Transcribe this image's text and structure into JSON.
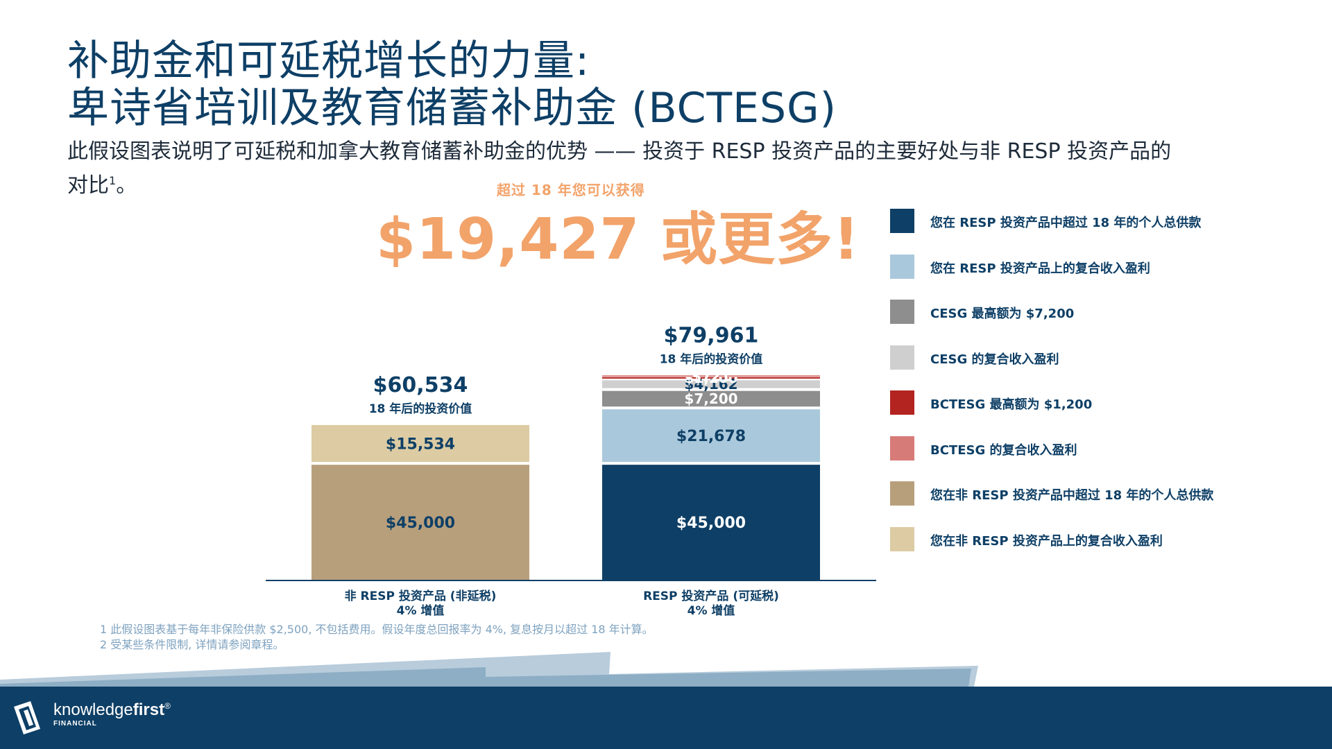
{
  "title_line1": "补助金和可延税增长的力量:",
  "title_line2": "卑诗省培训及教育储蓄补助金 (BCTESG)",
  "subtitle_text": "此假设图表说明了可延税和加拿大教育储蓄补助金的优势 —— 投资于 RESP 投资产品的主要好处与非 RESP 投资产品的对比",
  "subtitle_sup": "1",
  "subtitle_end": "。",
  "highlight": {
    "caption": "超过 18 年您可以获得",
    "amount": "$19,427 或更多!"
  },
  "chart_data": {
    "type": "bar",
    "stacked": true,
    "categories": [
      "非 RESP 投资产品 (非延税)",
      "RESP 投资产品 (可延税)"
    ],
    "category_sub": [
      "4% 增值",
      "4% 增值"
    ],
    "totals": [
      60534,
      79961
    ],
    "total_labels": [
      "$60,534",
      "$79,961"
    ],
    "total_sublabel": "18 年后的投资价值",
    "series": [
      {
        "name": "您在非 RESP 投资产品中超过 18 年的个人总供款",
        "color": "#b89f7c",
        "text_color": "#0e3f66",
        "values": [
          45000,
          0
        ],
        "labels": [
          "$45,000",
          ""
        ]
      },
      {
        "name": "您在非 RESP 投资产品上的复合收入盈利",
        "color": "#dccba3",
        "text_color": "#0e3f66",
        "values": [
          15534,
          0
        ],
        "labels": [
          "$15,534",
          ""
        ]
      },
      {
        "name": "您在 RESP 投资产品中超过 18 年的个人总供款",
        "color": "#0e3f66",
        "text_color": "#ffffff",
        "values": [
          0,
          45000
        ],
        "labels": [
          "",
          "$45,000"
        ]
      },
      {
        "name": "您在 RESP 投资产品上的复合收入盈利",
        "color": "#a9c8db",
        "text_color": "#0e3f66",
        "values": [
          0,
          21678
        ],
        "labels": [
          "",
          "$21,678"
        ]
      },
      {
        "name": "CESG 最高额为 $7,200",
        "color": "#8e8e8e",
        "text_color": "#ffffff",
        "values": [
          0,
          7200
        ],
        "labels": [
          "",
          "$7,200"
        ]
      },
      {
        "name": "CESG 的复合收入盈利",
        "color": "#cfcfcf",
        "text_color": "#0e3f66",
        "values": [
          0,
          4162
        ],
        "labels": [
          "",
          "$4,162"
        ]
      },
      {
        "name": "BCTESG 最高额为 $1,200",
        "color": "#b3231f",
        "text_color": "#ffffff",
        "values": [
          0,
          1200
        ],
        "labels": [
          "",
          "$1,200"
        ]
      },
      {
        "name": "BCTESG 的复合收入盈利",
        "color": "#d77b78",
        "text_color": "#ffffff",
        "values": [
          0,
          721
        ],
        "labels": [
          "",
          "$721"
        ]
      }
    ],
    "legend_position": "right",
    "legend_order": [
      2,
      3,
      4,
      5,
      6,
      7,
      0,
      1
    ]
  },
  "legend": [
    {
      "label": "您在 RESP 投资产品中超过 18 年的个人总供款",
      "color": "#0e3f66"
    },
    {
      "label": "您在 RESP 投资产品上的复合收入盈利",
      "color": "#a9c8db"
    },
    {
      "label": "CESG 最高额为 $7,200",
      "color": "#8e8e8e"
    },
    {
      "label": "CESG 的复合收入盈利",
      "color": "#cfcfcf"
    },
    {
      "label": "BCTESG 最高额为 $1,200",
      "color": "#b3231f"
    },
    {
      "label": "BCTESG 的复合收入盈利",
      "color": "#d77b78"
    },
    {
      "label": "您在非 RESP 投资产品中超过 18 年的个人总供款",
      "color": "#b89f7c"
    },
    {
      "label": "您在非 RESP 投资产品上的复合收入盈利",
      "color": "#dccba3"
    }
  ],
  "footnotes": [
    "1 此假设图表基于每年非保险供款 $2,500, 不包括费用。假设年度总回报率为 4%, 复息按月以超过 18 年计算。",
    "2 受某些条件限制, 详情请参阅章程。"
  ],
  "brand": {
    "name_regular": "knowledge",
    "name_bold": "first",
    "reg_mark": "®",
    "sub": "FINANCIAL"
  },
  "colors": {
    "navy": "#0e3f66",
    "orange_accent": "#f2a36a",
    "footnote": "#7ea2bf"
  }
}
